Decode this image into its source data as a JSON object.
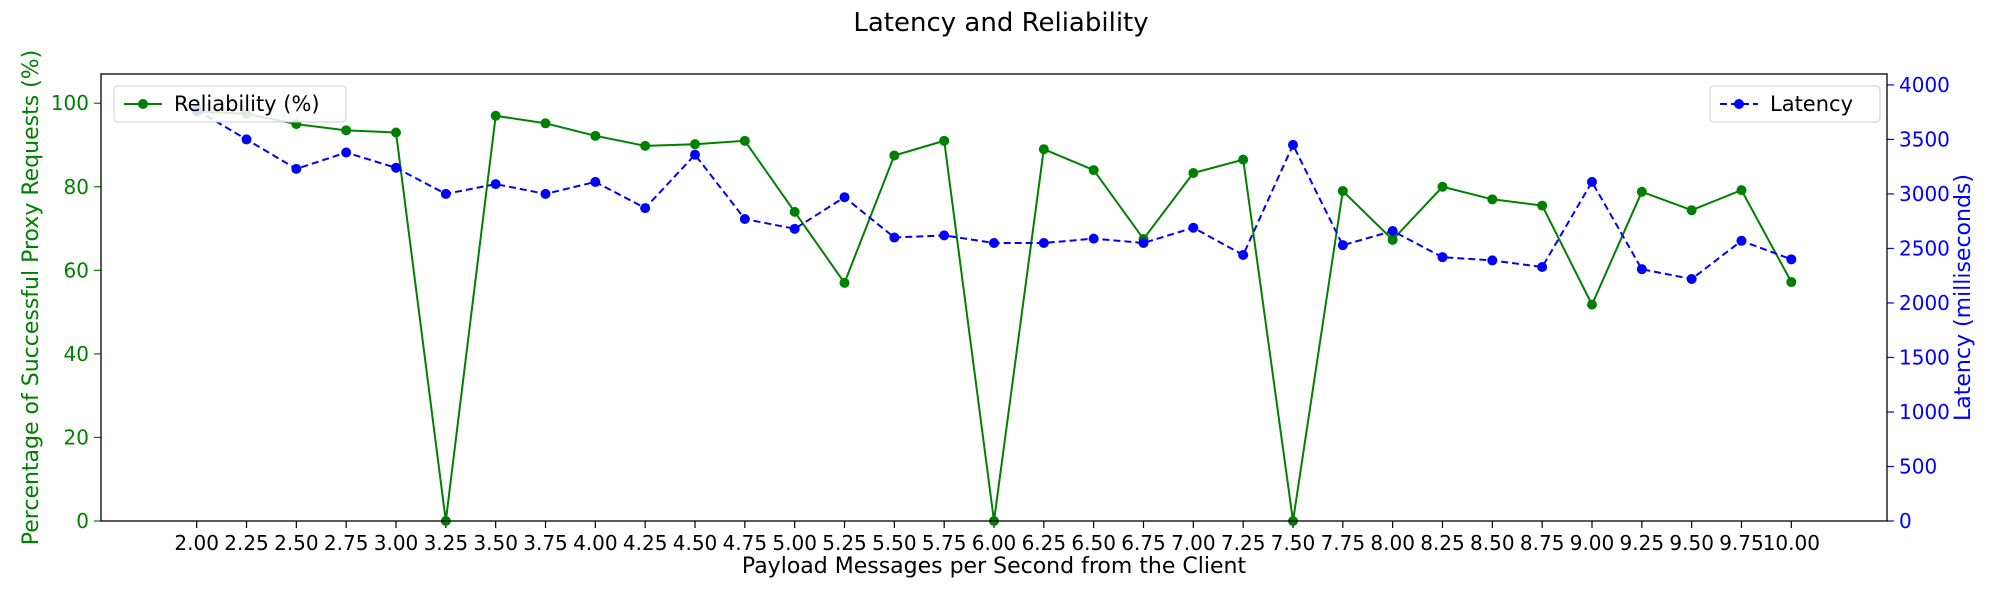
{
  "chart_data": {
    "type": "line",
    "title": "Latency and Reliability",
    "xlabel": "Payload Messages per Second from the Client",
    "ylabel_left": "Percentage of Successful Proxy Requests (%)",
    "ylabel_right": "Latency (milliseconds)",
    "x": [
      "2.00",
      "2.25",
      "2.50",
      "2.75",
      "3.00",
      "3.25",
      "3.50",
      "3.75",
      "4.00",
      "4.25",
      "4.50",
      "4.75",
      "5.00",
      "5.25",
      "5.50",
      "5.75",
      "6.00",
      "6.25",
      "6.50",
      "6.75",
      "7.00",
      "7.25",
      "7.50",
      "7.75",
      "8.00",
      "8.25",
      "8.50",
      "8.75",
      "9.00",
      "9.25",
      "9.50",
      "9.75",
      "10.00"
    ],
    "xlim": [
      1.52,
      10.48
    ],
    "ylim_left": [
      0,
      107
    ],
    "ylim_right": [
      0,
      4100
    ],
    "yticks_left": [
      0,
      20,
      40,
      60,
      80,
      100
    ],
    "yticks_right": [
      0,
      500,
      1000,
      1500,
      2000,
      2500,
      3000,
      3500,
      4000
    ],
    "grid": false,
    "series": [
      {
        "name": "Reliability (%)",
        "axis": "left",
        "color": "#008000",
        "linestyle": "solid",
        "legend_position": "top-left",
        "values": [
          98,
          97.5,
          95,
          93.5,
          93,
          0,
          97,
          95.2,
          92.2,
          89.8,
          90.2,
          91,
          74,
          57,
          87.5,
          91,
          0,
          89,
          84,
          67.5,
          83.3,
          86.5,
          0,
          79,
          67.3,
          80,
          77,
          75.5,
          51.8,
          78.8,
          74.4,
          79.2,
          57.2
        ]
      },
      {
        "name": "Latency",
        "axis": "right",
        "color": "#0000ff",
        "linestyle": "dashed",
        "legend_position": "top-right",
        "values": [
          3770,
          3500,
          3230,
          3380,
          3240,
          3000,
          3090,
          3000,
          3110,
          2870,
          3360,
          2770,
          2680,
          2970,
          2600,
          2620,
          2550,
          2550,
          2590,
          2550,
          2690,
          2440,
          3450,
          2530,
          2660,
          2420,
          2390,
          2330,
          3110,
          2310,
          2220,
          2570,
          2400
        ]
      }
    ]
  }
}
